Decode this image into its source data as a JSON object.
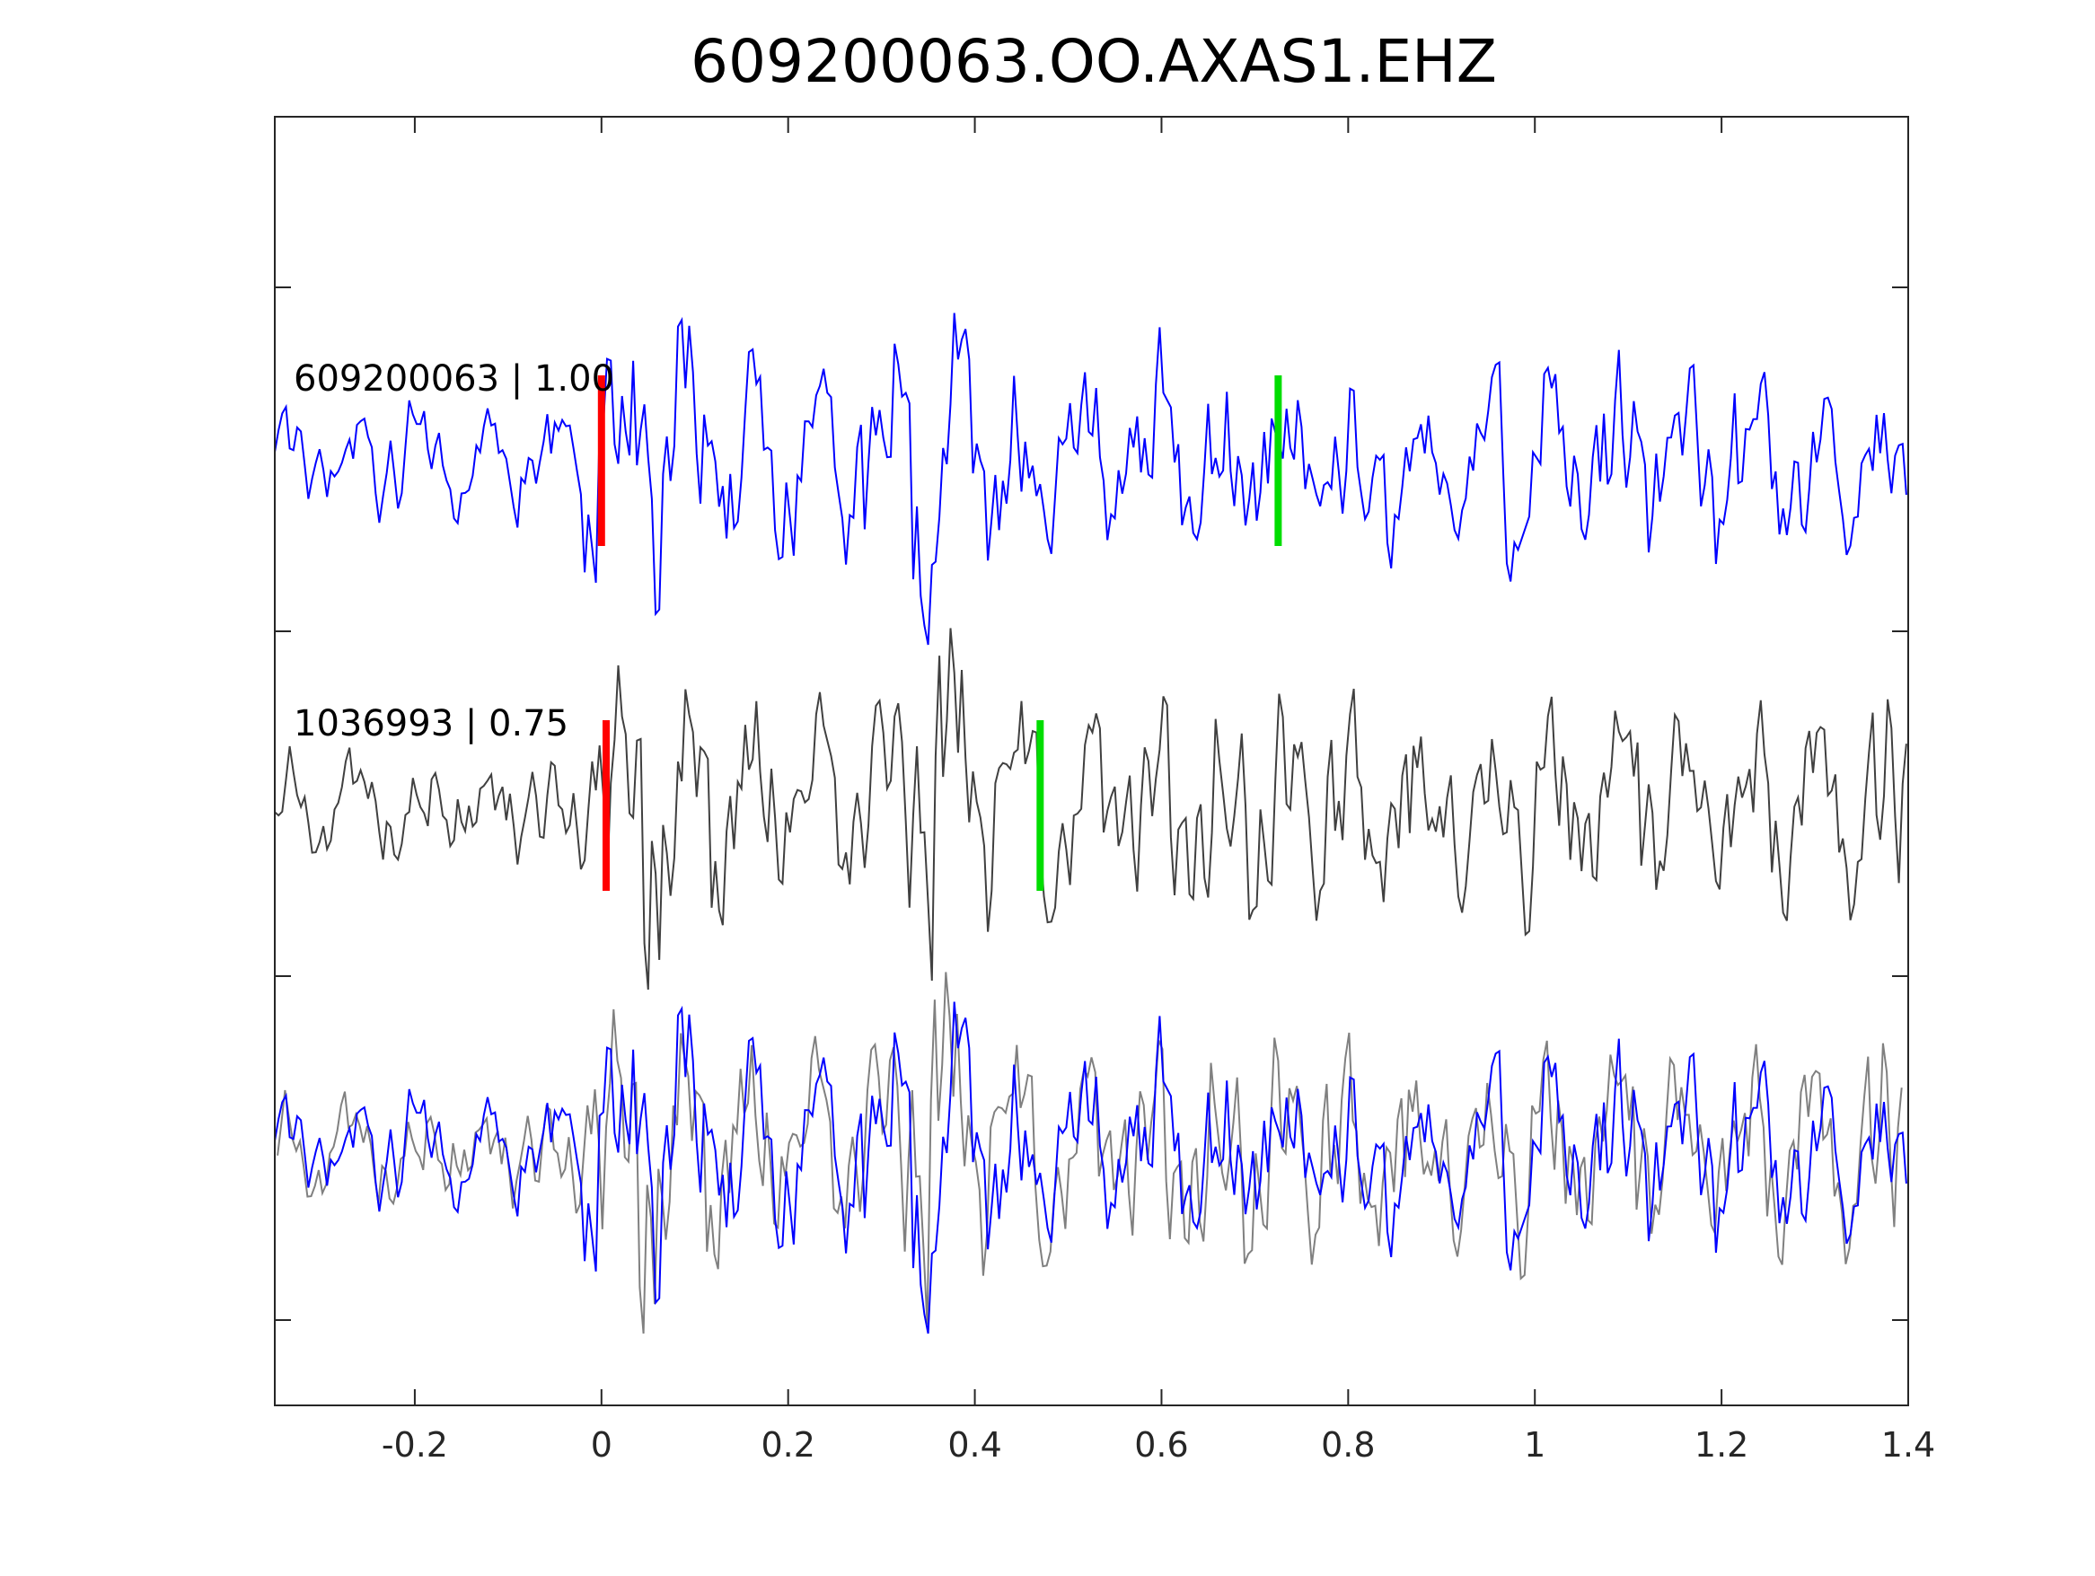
{
  "chart_data": {
    "type": "line",
    "title": "609200063.OO.AXAS1.EHZ",
    "xlabel": "",
    "ylabel": "",
    "xlim": [
      -0.35,
      1.4
    ],
    "xticks": [
      -0.2,
      0,
      0.2,
      0.4,
      0.6,
      0.8,
      1,
      1.2,
      1.4
    ],
    "xtick_labels": [
      "-0.2",
      "0",
      "0.2",
      "0.4",
      "0.6",
      "0.8",
      "1",
      "1.2",
      "1.4"
    ],
    "grid": false,
    "traces": [
      {
        "label": "609200063 | 1.00",
        "color": "#0000ff",
        "offset": 3,
        "p_pick": 0.0,
        "s_pick": 0.725,
        "pick_colors": {
          "p": "#ff0000",
          "s": "#00dd00"
        }
      },
      {
        "label": "1036993 | 0.75",
        "color": "#404040",
        "offset": 2,
        "p_pick": 0.005,
        "s_pick": 0.47,
        "pick_colors": {
          "p": "#ff0000",
          "s": "#00dd00"
        }
      },
      {
        "label": "",
        "offset": 1,
        "overlay_of": [
          "609200063 | 1.00",
          "1036993 | 0.75"
        ],
        "colors": [
          "#0000ff",
          "#808080"
        ]
      }
    ]
  }
}
